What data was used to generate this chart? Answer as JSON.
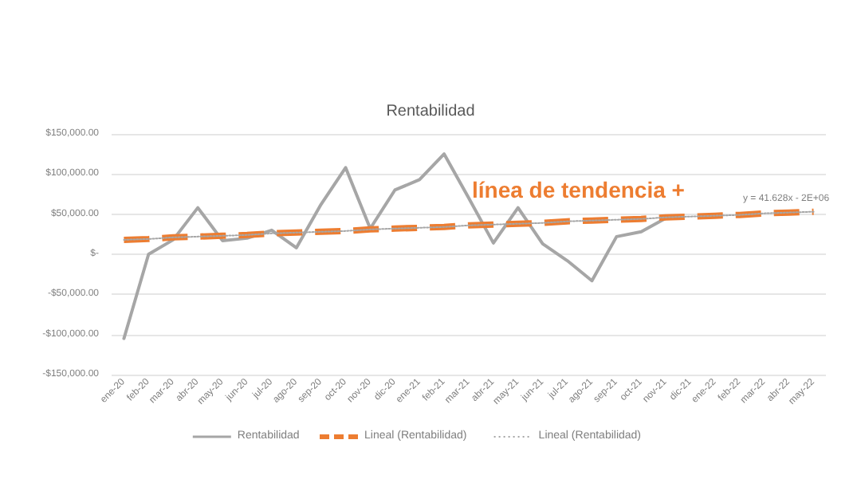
{
  "chart_data": {
    "type": "line",
    "title": "Rentabilidad",
    "categories": [
      "ene-20",
      "feb-20",
      "mar-20",
      "abr-20",
      "may-20",
      "jun-20",
      "jul-20",
      "ago-20",
      "sep-20",
      "oct-20",
      "nov-20",
      "dic-20",
      "ene-21",
      "feb-21",
      "mar-21",
      "abr-21",
      "may-21",
      "jun-21",
      "jul-21",
      "ago-21",
      "sep-21",
      "oct-21",
      "nov-21",
      "dic-21",
      "ene-22",
      "feb-22",
      "mar-22",
      "abr-22",
      "may-22"
    ],
    "series": [
      {
        "name": "Rentabilidad",
        "color": "#a6a6a6",
        "line_style": "solid",
        "values": [
          -105000,
          0,
          18000,
          58000,
          17000,
          20000,
          30000,
          8000,
          62000,
          108000,
          32000,
          80000,
          93000,
          125000,
          70000,
          14000,
          58000,
          13000,
          -8000,
          -33000,
          22000,
          28000,
          45000,
          null,
          null,
          null,
          null,
          null,
          null
        ]
      },
      {
        "name": "Lineal (Rentabilidad)",
        "color": "#ed7d31",
        "line_style": "dashed",
        "values": [
          18000,
          19000,
          21000,
          22000,
          23000,
          24000,
          26000,
          27000,
          28000,
          29000,
          31000,
          32000,
          33000,
          34000,
          36000,
          37000,
          38000,
          39000,
          41000,
          42000,
          43000,
          44000,
          46000,
          47000,
          48000,
          49000,
          51000,
          52000,
          53000
        ]
      },
      {
        "name": "Lineal (Rentabilidad)",
        "color": "#a6a6a6",
        "line_style": "dotted",
        "values": [
          18000,
          19000,
          21000,
          22000,
          23000,
          24000,
          26000,
          27000,
          28000,
          29000,
          31000,
          32000,
          33000,
          34000,
          36000,
          37000,
          38000,
          39000,
          41000,
          42000,
          43000,
          44000,
          46000,
          47000,
          48000,
          49000,
          51000,
          52000,
          53000
        ]
      }
    ],
    "ylim": [
      -150000,
      150000
    ],
    "yticks": [
      {
        "value": -150000,
        "label": "-$150,000.00"
      },
      {
        "value": -100000,
        "label": "-$100,000.00"
      },
      {
        "value": -50000,
        "label": "-$50,000.00"
      },
      {
        "value": 0,
        "label": "$-"
      },
      {
        "value": 50000,
        "label": "$50,000.00"
      },
      {
        "value": 100000,
        "label": "$100,000.00"
      },
      {
        "value": 150000,
        "label": "$150,000.00"
      }
    ],
    "grid": "y",
    "legend": "bottom",
    "marker": "none",
    "annotations": [
      "línea de tendencia +",
      "y = 41.628x - 2E+06"
    ]
  }
}
